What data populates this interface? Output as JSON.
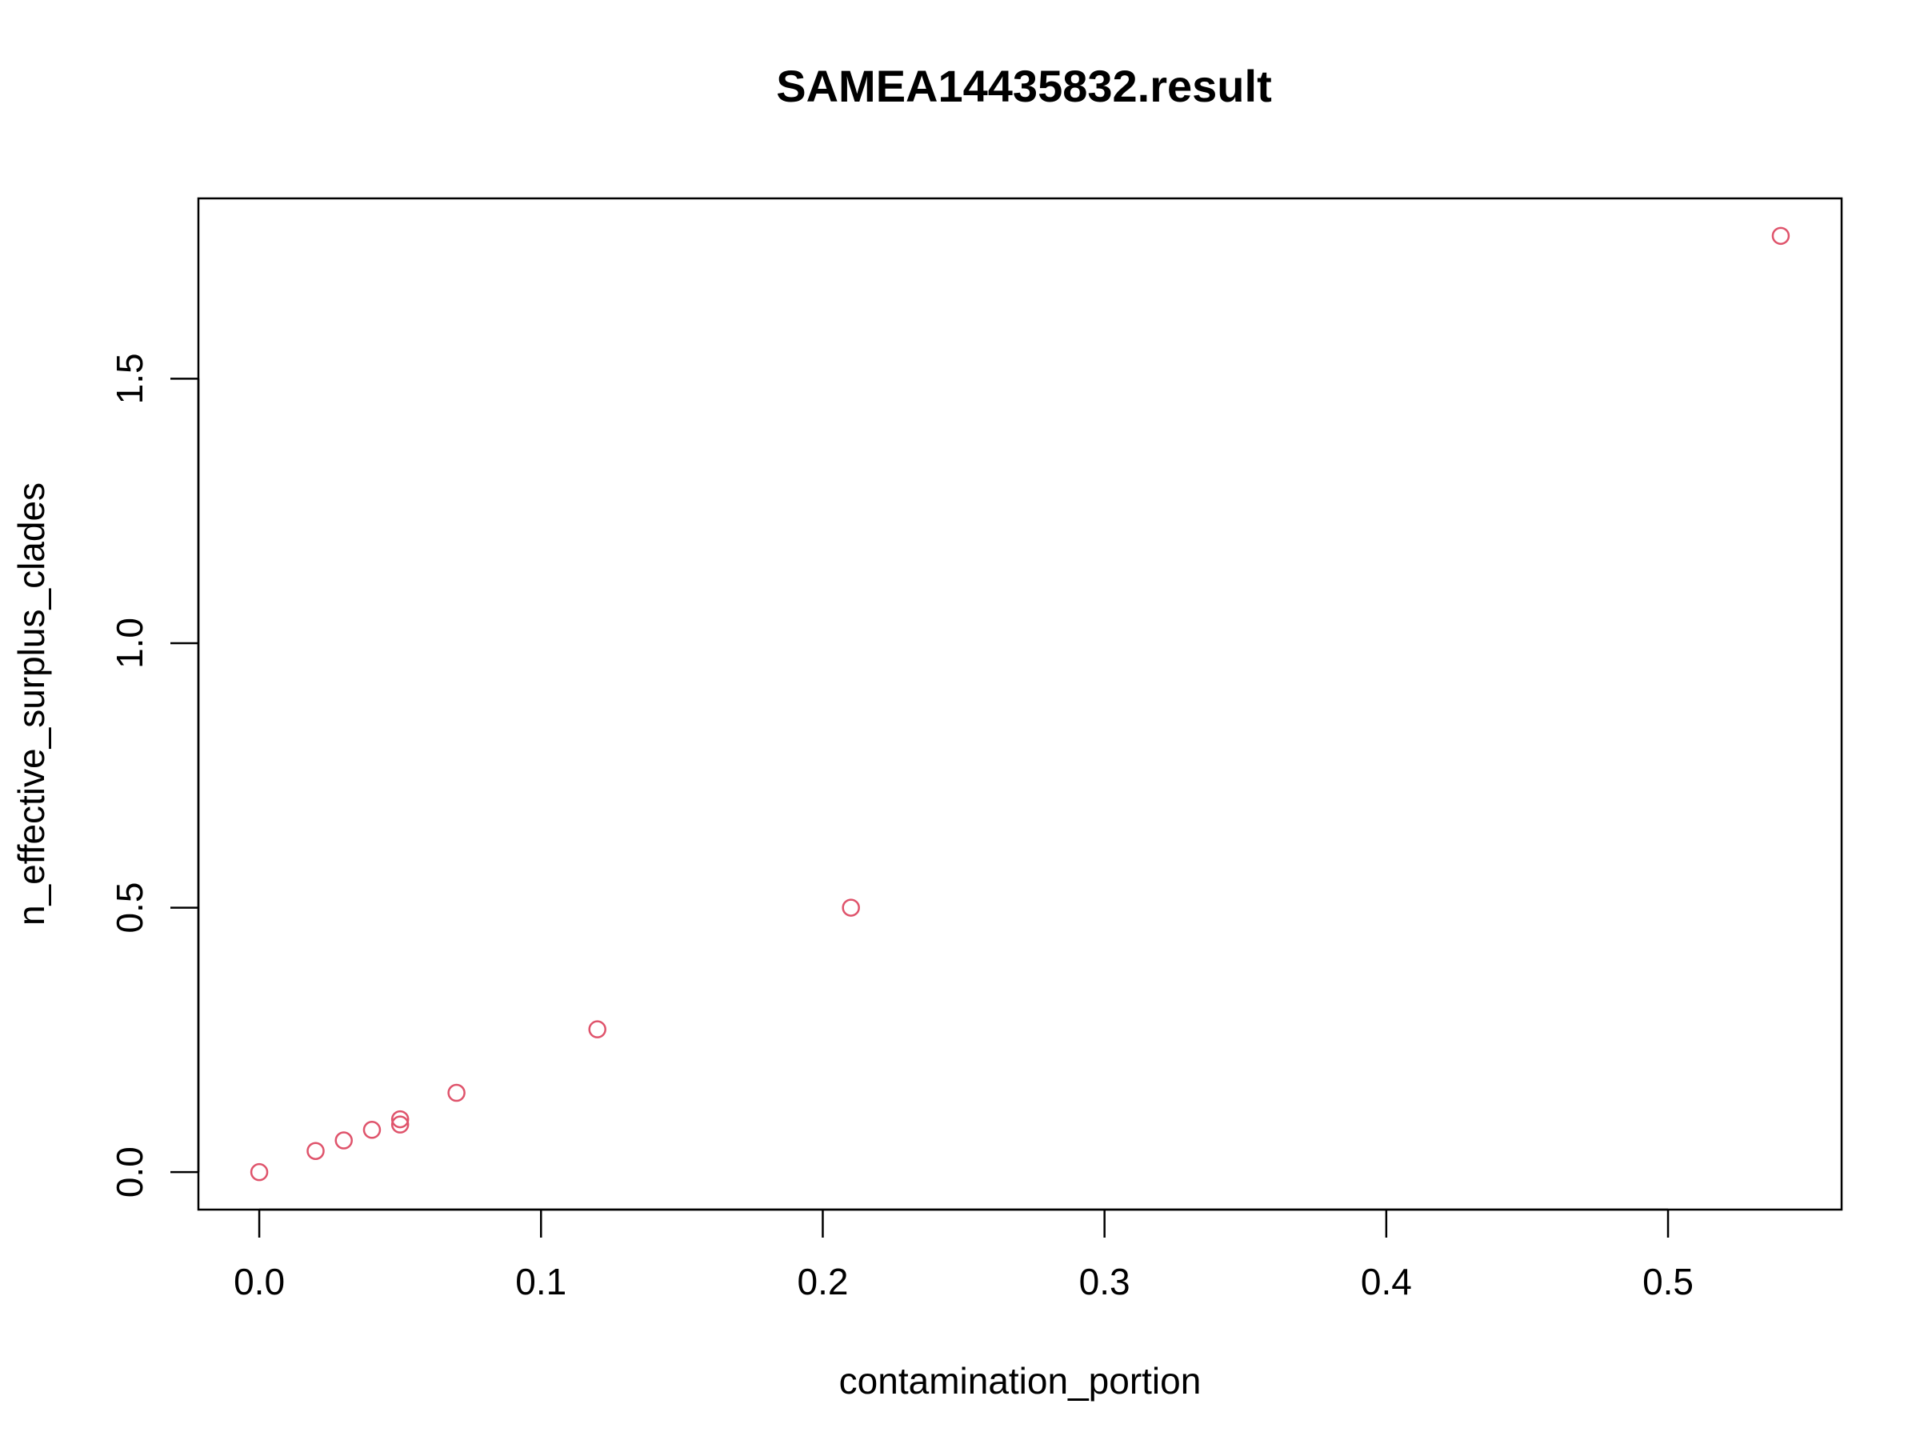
{
  "chart_data": {
    "type": "scatter",
    "title": "SAMEA14435832.result",
    "xlabel": "contamination_portion",
    "ylabel": "n_effective_surplus_clades",
    "xlim": [
      -0.0216,
      0.5616
    ],
    "ylim": [
      -0.0708,
      1.8408
    ],
    "x_ticks": [
      0.0,
      0.1,
      0.2,
      0.3,
      0.4,
      0.5
    ],
    "x_tick_labels": [
      "0.0",
      "0.1",
      "0.2",
      "0.3",
      "0.4",
      "0.5"
    ],
    "y_ticks": [
      0.0,
      0.5,
      1.0,
      1.5
    ],
    "y_tick_labels": [
      "0.0",
      "0.5",
      "1.0",
      "1.5"
    ],
    "grid": false,
    "marker": "open-circle",
    "point_color": "#DF536B",
    "points": [
      {
        "x": 0.0,
        "y": 0.0
      },
      {
        "x": 0.02,
        "y": 0.04
      },
      {
        "x": 0.03,
        "y": 0.06
      },
      {
        "x": 0.04,
        "y": 0.08
      },
      {
        "x": 0.05,
        "y": 0.09
      },
      {
        "x": 0.05,
        "y": 0.1
      },
      {
        "x": 0.07,
        "y": 0.15
      },
      {
        "x": 0.12,
        "y": 0.27
      },
      {
        "x": 0.21,
        "y": 0.5
      },
      {
        "x": 0.54,
        "y": 1.77
      }
    ]
  }
}
